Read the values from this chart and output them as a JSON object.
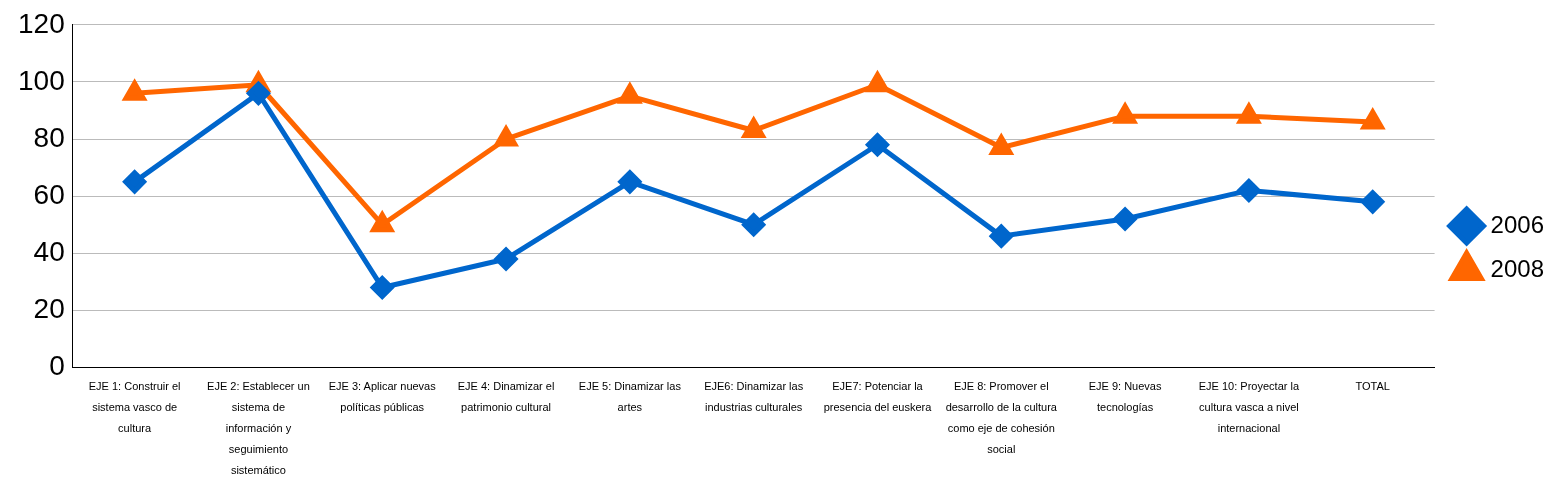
{
  "chart_data": {
    "type": "line",
    "categories": [
      "EJE 1: Construir el sistema vasco de cultura",
      "EJE 2: Establecer un sistema de información y seguimiento sistemático",
      "EJE 3: Aplicar nuevas políticas públicas",
      "EJE 4: Dinamizar el patrimonio cultural",
      "EJE 5: Dinamizar las artes",
      "EJE6: Dinamizar las industrias culturales",
      "EJE7: Potenciar la presencia del euskera",
      "EJE 8: Promover el desarrollo de la cultura como eje de cohesión social",
      "EJE 9: Nuevas tecnologías",
      "EJE 10: Proyectar la cultura vasca a nivel internacional",
      "TOTAL"
    ],
    "series": [
      {
        "name": "2006",
        "color": "#0066cc",
        "marker": "diamond",
        "values": [
          65,
          96,
          28,
          38,
          65,
          50,
          78,
          46,
          52,
          62,
          58
        ]
      },
      {
        "name": "2008",
        "color": "#ff6600",
        "marker": "triangle",
        "values": [
          96,
          99,
          50,
          80,
          95,
          83,
          99,
          77,
          88,
          88,
          86
        ]
      }
    ],
    "ylim": [
      0,
      120
    ],
    "yticks": [
      0,
      20,
      40,
      60,
      80,
      100,
      120
    ],
    "grid": "y",
    "legend": "right",
    "line_style": "solid"
  }
}
